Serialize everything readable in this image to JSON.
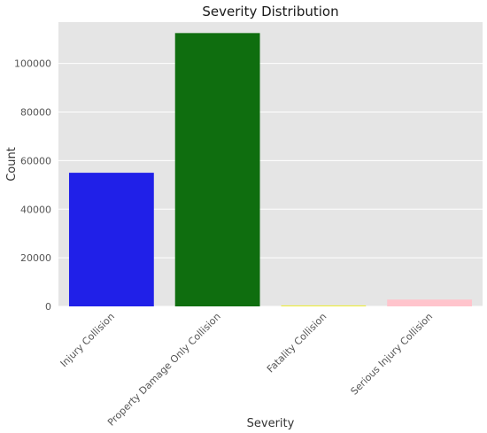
{
  "chart_data": {
    "type": "bar",
    "title": "Severity Distribution",
    "xlabel": "Severity",
    "ylabel": "Count",
    "categories": [
      "Injury Collision",
      "Property Damage Only Collision",
      "Fatality Collision",
      "Serious Injury Collision"
    ],
    "values": [
      55000,
      112500,
      400,
      2800
    ],
    "colors": [
      "#2020e8",
      "#0f6e0f",
      "#ecec3c",
      "#ffc4cc"
    ],
    "yticks": [
      0,
      20000,
      40000,
      60000,
      80000,
      100000
    ],
    "ylim": [
      0,
      117000
    ],
    "grid": true,
    "background": "#e5e5e5",
    "gridline_color": "#ffffff"
  }
}
